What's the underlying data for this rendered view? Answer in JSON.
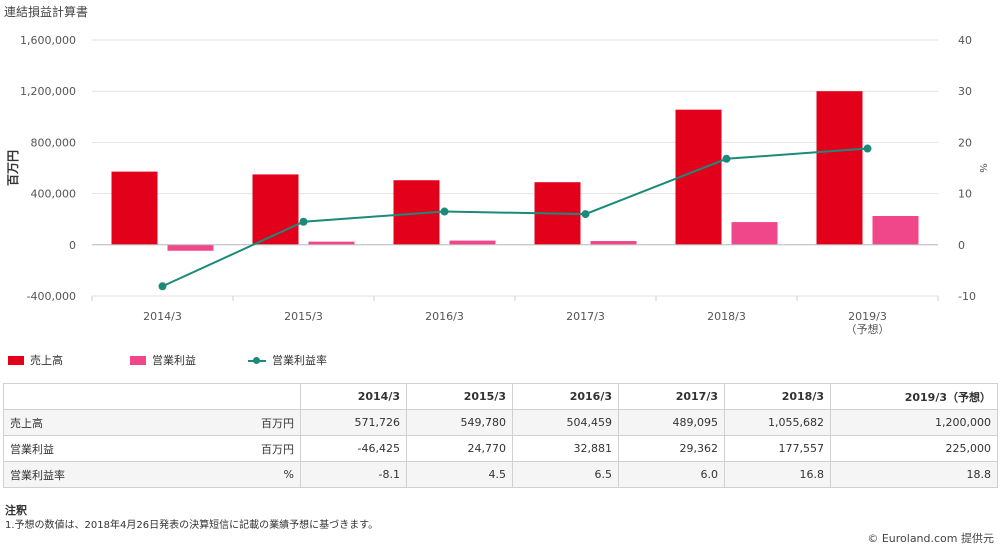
{
  "title": "連結損益計算書",
  "chart_data": {
    "type": "bar",
    "categories": [
      "2014/3",
      "2015/3",
      "2016/3",
      "2017/3",
      "2018/3",
      "2019/3\n（予想）"
    ],
    "series": [
      {
        "name": "売上高",
        "type": "bar",
        "axis": "left",
        "color": "#e3001b",
        "values": [
          571726,
          549780,
          504459,
          489095,
          1055682,
          1200000
        ]
      },
      {
        "name": "営業利益",
        "type": "bar",
        "axis": "left",
        "color": "#f0468a",
        "values": [
          -46425,
          24770,
          32881,
          29362,
          177557,
          225000
        ]
      },
      {
        "name": "営業利益率",
        "type": "line",
        "axis": "right",
        "color": "#1b8a7a",
        "values": [
          -8.1,
          4.5,
          6.5,
          6.0,
          16.8,
          18.8
        ]
      }
    ],
    "ylabel": "百万円",
    "y2label": "%",
    "ylim": [
      -400000,
      1600000
    ],
    "y2lim": [
      -10,
      40
    ],
    "yticks": [
      "1,600,000",
      "1,200,000",
      "800,000",
      "400,000",
      "0",
      "-400,000"
    ],
    "y2ticks": [
      "40",
      "30",
      "20",
      "10",
      "0",
      "-10"
    ],
    "grid": true,
    "legend": "bottom-left"
  },
  "table": {
    "headers": [
      "",
      "2014/3",
      "2015/3",
      "2016/3",
      "2017/3",
      "2018/3",
      "2019/3（予想）"
    ],
    "rows": [
      {
        "label": "売上高",
        "unit": "百万円",
        "values": [
          "571,726",
          "549,780",
          "504,459",
          "489,095",
          "1,055,682",
          "1,200,000"
        ]
      },
      {
        "label": "営業利益",
        "unit": "百万円",
        "values": [
          "-46,425",
          "24,770",
          "32,881",
          "29,362",
          "177,557",
          "225,000"
        ]
      },
      {
        "label": "営業利益率",
        "unit": "%",
        "values": [
          "-8.1",
          "4.5",
          "6.5",
          "6.0",
          "16.8",
          "18.8"
        ]
      }
    ]
  },
  "notes": {
    "heading": "注釈",
    "items": [
      "1.予想の数値は、2018年4月26日発表の決算短信に記載の業績予想に基づきます。"
    ]
  },
  "credit": "© Euroland.com 提供元"
}
